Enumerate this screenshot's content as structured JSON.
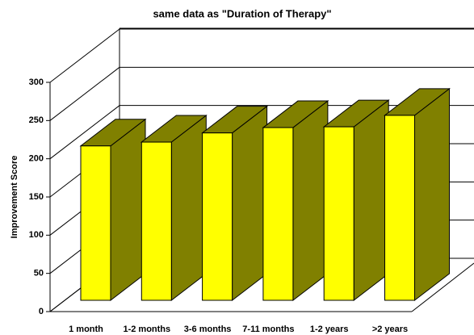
{
  "chart_data": {
    "type": "bar3d",
    "title": "same data as \"Duration of Therapy\"",
    "y_label": "Improvement Score",
    "categories": [
      "1 month",
      "1-2 months",
      "3-6 months",
      "7-11 months",
      "1-2 years",
      ">2 years"
    ],
    "values": [
      202,
      207,
      219,
      226,
      227,
      242
    ],
    "front_color": "#ffff00",
    "side_color": "#808000",
    "ylim": [
      0,
      300
    ],
    "yticks": [
      0,
      50,
      100,
      150,
      200,
      250,
      300
    ],
    "grid": true
  }
}
